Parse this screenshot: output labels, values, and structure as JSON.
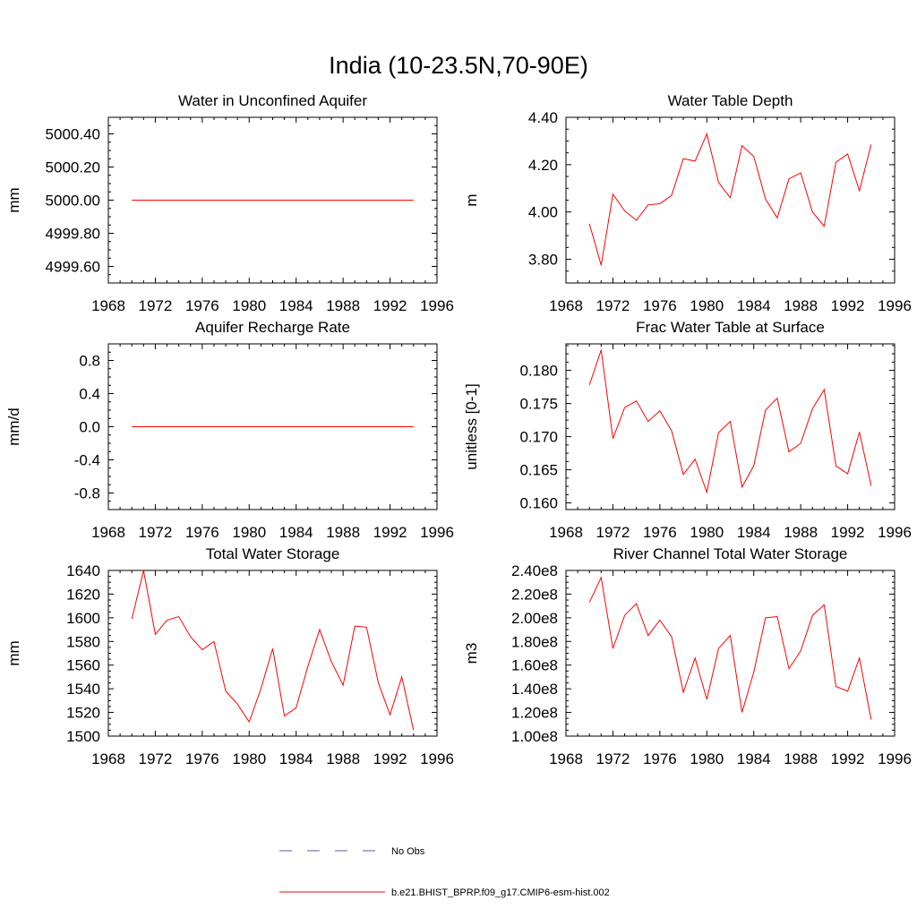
{
  "figure_title": "India (10-23.5N,70-90E)",
  "legend": {
    "entries": [
      {
        "label": "No Obs",
        "style": "dashed",
        "color": "#5a5aa0"
      },
      {
        "label": "b.e21.BHIST_BPRP.f09_g17.CMIP6-esm-hist.002",
        "style": "solid",
        "color": "#ff0000"
      }
    ]
  },
  "chart_data": [
    {
      "type": "line",
      "title": "Water in Unconfined Aquifer",
      "ylabel": "mm",
      "xlim": [
        1968,
        1996
      ],
      "xticks": [
        1968,
        1972,
        1976,
        1980,
        1984,
        1988,
        1992,
        1996
      ],
      "ylim": [
        4999.5,
        5000.5
      ],
      "yticks": [
        4999.6,
        4999.8,
        5000.0,
        5000.2,
        5000.4
      ],
      "ytick_labels": [
        "4999.60",
        "4999.80",
        "5000.00",
        "5000.20",
        "5000.40"
      ],
      "series": [
        {
          "color": "#ff0000",
          "x": [
            1970,
            1971,
            1972,
            1973,
            1974,
            1975,
            1976,
            1977,
            1978,
            1979,
            1980,
            1981,
            1982,
            1983,
            1984,
            1985,
            1986,
            1987,
            1988,
            1989,
            1990,
            1991,
            1992,
            1993,
            1994
          ],
          "y": [
            5000,
            5000,
            5000,
            5000,
            5000,
            5000,
            5000,
            5000,
            5000,
            5000,
            5000,
            5000,
            5000,
            5000,
            5000,
            5000,
            5000,
            5000,
            5000,
            5000,
            5000,
            5000,
            5000,
            5000,
            5000
          ]
        }
      ]
    },
    {
      "type": "line",
      "title": "Water Table Depth",
      "ylabel": "m",
      "xlim": [
        1968,
        1996
      ],
      "xticks": [
        1968,
        1972,
        1976,
        1980,
        1984,
        1988,
        1992,
        1996
      ],
      "ylim": [
        3.7,
        4.4
      ],
      "yticks": [
        3.8,
        4.0,
        4.2,
        4.4
      ],
      "ytick_labels": [
        "3.80",
        "4.00",
        "4.20",
        "4.40"
      ],
      "series": [
        {
          "color": "#ff0000",
          "x": [
            1970,
            1971,
            1972,
            1973,
            1974,
            1975,
            1976,
            1977,
            1978,
            1979,
            1980,
            1981,
            1982,
            1983,
            1984,
            1985,
            1986,
            1987,
            1988,
            1989,
            1990,
            1991,
            1992,
            1993,
            1994
          ],
          "y": [
            3.95,
            3.775,
            4.075,
            4.005,
            3.965,
            4.03,
            4.035,
            4.07,
            4.225,
            4.215,
            4.33,
            4.125,
            4.06,
            4.28,
            4.235,
            4.055,
            3.975,
            4.14,
            4.165,
            4.0,
            3.94,
            4.21,
            4.245,
            4.09,
            4.285
          ]
        }
      ]
    },
    {
      "type": "line",
      "title": "Aquifer Recharge Rate",
      "ylabel": "mm/d",
      "xlim": [
        1968,
        1996
      ],
      "xticks": [
        1968,
        1972,
        1976,
        1980,
        1984,
        1988,
        1992,
        1996
      ],
      "ylim": [
        -1.0,
        1.0
      ],
      "yticks": [
        -0.8,
        -0.4,
        0.0,
        0.4,
        0.8
      ],
      "ytick_labels": [
        "-0.8",
        "-0.4",
        "0.0",
        "0.4",
        "0.8"
      ],
      "series": [
        {
          "color": "#ff0000",
          "x": [
            1970,
            1971,
            1972,
            1973,
            1974,
            1975,
            1976,
            1977,
            1978,
            1979,
            1980,
            1981,
            1982,
            1983,
            1984,
            1985,
            1986,
            1987,
            1988,
            1989,
            1990,
            1991,
            1992,
            1993,
            1994
          ],
          "y": [
            0,
            0,
            0,
            0,
            0,
            0,
            0,
            0,
            0,
            0,
            0,
            0,
            0,
            0,
            0,
            0,
            0,
            0,
            0,
            0,
            0,
            0,
            0,
            0,
            0
          ]
        }
      ]
    },
    {
      "type": "line",
      "title": "Frac Water Table at Surface",
      "ylabel": "unitless [0-1]",
      "xlim": [
        1968,
        1996
      ],
      "xticks": [
        1968,
        1972,
        1976,
        1980,
        1984,
        1988,
        1992,
        1996
      ],
      "ylim": [
        0.159,
        0.184
      ],
      "yticks": [
        0.16,
        0.165,
        0.17,
        0.175,
        0.18
      ],
      "ytick_labels": [
        "0.160",
        "0.165",
        "0.170",
        "0.175",
        "0.180"
      ],
      "series": [
        {
          "color": "#ff0000",
          "x": [
            1970,
            1971,
            1972,
            1973,
            1974,
            1975,
            1976,
            1977,
            1978,
            1979,
            1980,
            1981,
            1982,
            1983,
            1984,
            1985,
            1986,
            1987,
            1988,
            1989,
            1990,
            1991,
            1992,
            1993,
            1994
          ],
          "y": [
            0.1778,
            0.1831,
            0.1697,
            0.1744,
            0.1754,
            0.1723,
            0.1739,
            0.1709,
            0.1643,
            0.1666,
            0.1616,
            0.1706,
            0.1723,
            0.1624,
            0.1656,
            0.174,
            0.1758,
            0.1677,
            0.169,
            0.1742,
            0.1771,
            0.1656,
            0.1644,
            0.1707,
            0.1626
          ]
        }
      ]
    },
    {
      "type": "line",
      "title": "Total Water Storage",
      "ylabel": "mm",
      "xlim": [
        1968,
        1996
      ],
      "xticks": [
        1968,
        1972,
        1976,
        1980,
        1984,
        1988,
        1992,
        1996
      ],
      "ylim": [
        1500,
        1640
      ],
      "yticks": [
        1500,
        1520,
        1540,
        1560,
        1580,
        1600,
        1620,
        1640
      ],
      "ytick_labels": [
        "1500",
        "1520",
        "1540",
        "1560",
        "1580",
        "1600",
        "1620",
        "1640"
      ],
      "series": [
        {
          "color": "#ff0000",
          "x": [
            1970,
            1971,
            1972,
            1973,
            1974,
            1975,
            1976,
            1977,
            1978,
            1979,
            1980,
            1981,
            1982,
            1983,
            1984,
            1985,
            1986,
            1987,
            1988,
            1989,
            1990,
            1991,
            1992,
            1993,
            1994
          ],
          "y": [
            1599,
            1640,
            1586,
            1598,
            1601,
            1584,
            1573,
            1580,
            1538,
            1527,
            1512,
            1540,
            1574,
            1517,
            1524,
            1559,
            1590,
            1563,
            1543,
            1593,
            1592,
            1545,
            1518,
            1550,
            1505
          ]
        }
      ]
    },
    {
      "type": "line",
      "title": "River Channel Total Water Storage",
      "ylabel": "m3",
      "xlim": [
        1968,
        1996
      ],
      "xticks": [
        1968,
        1972,
        1976,
        1980,
        1984,
        1988,
        1992,
        1996
      ],
      "ylim": [
        100000000,
        240000000
      ],
      "yticks": [
        100000000,
        120000000,
        140000000,
        160000000,
        180000000,
        200000000,
        220000000,
        240000000
      ],
      "ytick_labels": [
        "1.00e8",
        "1.20e8",
        "1.40e8",
        "1.60e8",
        "1.80e8",
        "2.00e8",
        "2.20e8",
        "2.40e8"
      ],
      "series": [
        {
          "color": "#ff0000",
          "x": [
            1970,
            1971,
            1972,
            1973,
            1974,
            1975,
            1976,
            1977,
            1978,
            1979,
            1980,
            1981,
            1982,
            1983,
            1984,
            1985,
            1986,
            1987,
            1988,
            1989,
            1990,
            1991,
            1992,
            1993,
            1994
          ],
          "y": [
            213000000,
            234000000,
            174000000,
            202000000,
            212000000,
            185000000,
            198000000,
            184000000,
            137000000,
            166000000,
            131000000,
            174000000,
            185000000,
            120000000,
            154000000,
            200000000,
            201000000,
            157000000,
            172000000,
            202000000,
            211000000,
            142000000,
            138000000,
            166000000,
            114000000
          ]
        }
      ]
    }
  ]
}
